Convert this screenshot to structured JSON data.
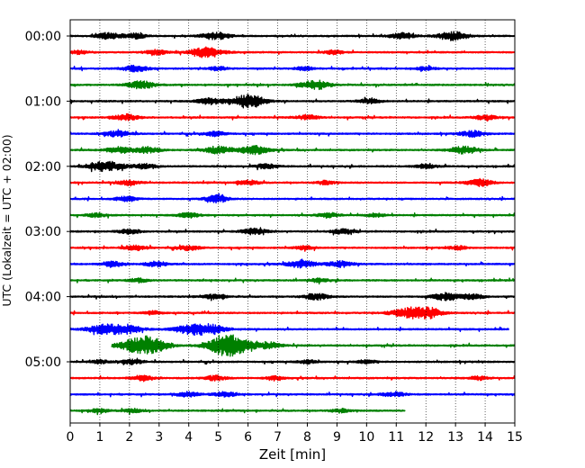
{
  "chart_data": {
    "type": "line",
    "subtype": "helicorder (seismogram drum plot)",
    "xlabel": "Zeit  [min]",
    "ylabel": "UTC (Lokalzeit = UTC + 02:00)",
    "xlim": [
      0,
      15
    ],
    "x_ticks": [
      "0",
      "1",
      "2",
      "3",
      "4",
      "5",
      "6",
      "7",
      "8",
      "9",
      "10",
      "11",
      "12",
      "13",
      "14",
      "15"
    ],
    "y_tick_labels": [
      "00:00",
      "01:00",
      "02:00",
      "03:00",
      "04:00",
      "05:00"
    ],
    "grid": "vertical dotted lines at each minute",
    "line_minutes": 15,
    "trace_colors": [
      "#000000",
      "#ff0000",
      "#0000ff",
      "#008000"
    ],
    "traces": [
      {
        "row": 0,
        "color": "#000000",
        "end_min": 15.0,
        "bursts": [
          [
            1.3,
            0.5
          ],
          [
            2.2,
            0.4
          ],
          [
            4.9,
            0.6
          ],
          [
            11.2,
            0.5
          ],
          [
            12.9,
            0.7
          ]
        ]
      },
      {
        "row": 1,
        "color": "#ff0000",
        "end_min": 15.0,
        "bursts": [
          [
            0.3,
            0.3
          ],
          [
            2.9,
            0.4
          ],
          [
            4.6,
            0.8
          ],
          [
            8.9,
            0.3
          ]
        ]
      },
      {
        "row": 2,
        "color": "#0000ff",
        "end_min": 15.0,
        "bursts": [
          [
            2.2,
            0.5
          ],
          [
            5.0,
            0.3
          ],
          [
            7.9,
            0.3
          ],
          [
            12.0,
            0.3
          ]
        ]
      },
      {
        "row": 3,
        "color": "#008000",
        "end_min": 15.0,
        "bursts": [
          [
            2.4,
            0.6
          ],
          [
            8.1,
            0.5
          ],
          [
            8.5,
            0.4
          ]
        ]
      },
      {
        "row": 4,
        "color": "#000000",
        "end_min": 15.0,
        "bursts": [
          [
            4.7,
            0.5
          ],
          [
            5.9,
            0.8
          ],
          [
            6.2,
            0.5
          ],
          [
            10.1,
            0.4
          ]
        ]
      },
      {
        "row": 5,
        "color": "#ff0000",
        "end_min": 15.0,
        "bursts": [
          [
            1.9,
            0.5
          ],
          [
            8.0,
            0.4
          ],
          [
            14.0,
            0.4
          ]
        ]
      },
      {
        "row": 6,
        "color": "#0000ff",
        "end_min": 15.0,
        "bursts": [
          [
            1.6,
            0.5
          ],
          [
            4.9,
            0.4
          ],
          [
            13.6,
            0.5
          ]
        ]
      },
      {
        "row": 7,
        "color": "#008000",
        "end_min": 15.0,
        "bursts": [
          [
            1.6,
            0.5
          ],
          [
            2.6,
            0.5
          ],
          [
            5.0,
            0.6
          ],
          [
            6.2,
            0.7
          ],
          [
            13.3,
            0.6
          ]
        ]
      },
      {
        "row": 8,
        "color": "#000000",
        "end_min": 15.0,
        "bursts": [
          [
            0.9,
            0.5
          ],
          [
            1.4,
            0.6
          ],
          [
            2.5,
            0.4
          ],
          [
            6.6,
            0.4
          ],
          [
            12.0,
            0.4
          ]
        ]
      },
      {
        "row": 9,
        "color": "#ff0000",
        "end_min": 15.0,
        "bursts": [
          [
            2.0,
            0.4
          ],
          [
            6.0,
            0.4
          ],
          [
            8.6,
            0.3
          ],
          [
            13.7,
            0.4
          ],
          [
            14.0,
            0.3
          ]
        ]
      },
      {
        "row": 10,
        "color": "#0000ff",
        "end_min": 15.0,
        "bursts": [
          [
            1.9,
            0.4
          ],
          [
            4.9,
            0.4
          ],
          [
            5.0,
            0.3
          ]
        ]
      },
      {
        "row": 11,
        "color": "#008000",
        "end_min": 15.0,
        "bursts": [
          [
            0.9,
            0.3
          ],
          [
            4.0,
            0.4
          ],
          [
            8.7,
            0.4
          ],
          [
            10.3,
            0.3
          ]
        ]
      },
      {
        "row": 12,
        "color": "#000000",
        "end_min": 15.0,
        "bursts": [
          [
            2.0,
            0.4
          ],
          [
            6.2,
            0.5
          ],
          [
            9.2,
            0.4
          ]
        ]
      },
      {
        "row": 13,
        "color": "#ff0000",
        "end_min": 15.0,
        "bursts": [
          [
            2.2,
            0.4
          ],
          [
            4.0,
            0.4
          ],
          [
            7.9,
            0.3
          ],
          [
            13.1,
            0.3
          ]
        ]
      },
      {
        "row": 14,
        "color": "#0000ff",
        "end_min": 15.0,
        "bursts": [
          [
            1.4,
            0.4
          ],
          [
            2.9,
            0.4
          ],
          [
            7.8,
            0.6
          ],
          [
            9.1,
            0.5
          ]
        ]
      },
      {
        "row": 15,
        "color": "#008000",
        "end_min": 15.0,
        "bursts": [
          [
            2.3,
            0.3
          ],
          [
            8.4,
            0.3
          ]
        ]
      },
      {
        "row": 16,
        "color": "#000000",
        "end_min": 15.0,
        "bursts": [
          [
            4.9,
            0.4
          ],
          [
            8.3,
            0.5
          ],
          [
            12.7,
            0.6
          ],
          [
            13.6,
            0.4
          ]
        ]
      },
      {
        "row": 17,
        "color": "#ff0000",
        "end_min": 15.0,
        "bursts": [
          [
            2.8,
            0.3
          ],
          [
            11.6,
            1.0
          ],
          [
            12.2,
            0.4
          ]
        ]
      },
      {
        "row": 18,
        "color": "#0000ff",
        "end_min": 14.8,
        "bursts": [
          [
            1.0,
            0.6
          ],
          [
            1.8,
            0.8
          ],
          [
            4.2,
            0.9
          ],
          [
            4.9,
            0.5
          ]
        ]
      },
      {
        "row": 19,
        "color": "#008000",
        "start_min": 1.4,
        "end_min": 15.0,
        "bursts": [
          [
            2.3,
            1.0
          ],
          [
            2.8,
            0.8
          ],
          [
            5.2,
            0.9
          ],
          [
            5.5,
            1.0
          ],
          [
            6.7,
            0.5
          ]
        ]
      },
      {
        "row": 20,
        "color": "#000000",
        "end_min": 15.0,
        "bursts": [
          [
            1.0,
            0.3
          ],
          [
            2.1,
            0.4
          ],
          [
            8.0,
            0.3
          ],
          [
            10.0,
            0.3
          ]
        ]
      },
      {
        "row": 21,
        "color": "#ff0000",
        "end_min": 15.0,
        "bursts": [
          [
            2.4,
            0.4
          ],
          [
            4.9,
            0.4
          ],
          [
            6.9,
            0.3
          ],
          [
            13.8,
            0.3
          ]
        ]
      },
      {
        "row": 22,
        "color": "#0000ff",
        "end_min": 15.0,
        "bursts": [
          [
            4.0,
            0.4
          ],
          [
            5.2,
            0.4
          ],
          [
            10.9,
            0.4
          ]
        ]
      },
      {
        "row": 23,
        "color": "#008000",
        "end_min": 11.3,
        "bursts": [
          [
            1.0,
            0.3
          ],
          [
            2.1,
            0.3
          ],
          [
            9.1,
            0.3
          ]
        ]
      }
    ]
  }
}
